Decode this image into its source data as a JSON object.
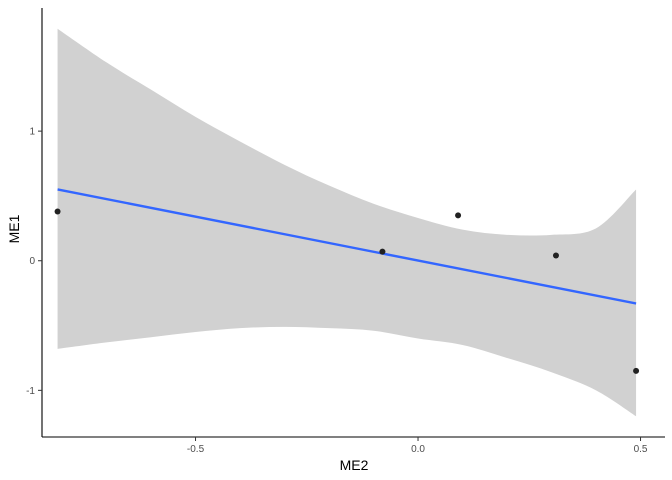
{
  "chart_data": {
    "type": "scatter",
    "xlabel": "ME2",
    "ylabel": "ME1",
    "xlim": [
      -0.845,
      0.555
    ],
    "ylim": [
      -1.36,
      1.95
    ],
    "x_ticks": [
      -0.5,
      0.0,
      0.5
    ],
    "x_tick_labels": [
      "-0.5",
      "0.0",
      "0.5"
    ],
    "y_ticks": [
      -1,
      0,
      1
    ],
    "y_tick_labels": [
      "-1",
      "0",
      "1"
    ],
    "grid": false,
    "points": [
      {
        "x": -0.81,
        "y": 0.38
      },
      {
        "x": -0.08,
        "y": 0.07
      },
      {
        "x": 0.09,
        "y": 0.35
      },
      {
        "x": 0.31,
        "y": 0.04
      },
      {
        "x": 0.49,
        "y": -0.85
      }
    ],
    "regression_line": {
      "x": [
        -0.81,
        0.49
      ],
      "y": [
        0.55,
        -0.33
      ]
    },
    "confidence_band": {
      "x": [
        -0.81,
        -0.7,
        -0.6,
        -0.5,
        -0.4,
        -0.3,
        -0.2,
        -0.1,
        0.0,
        0.1,
        0.2,
        0.3,
        0.4,
        0.49
      ],
      "upper": [
        1.79,
        1.53,
        1.32,
        1.11,
        0.92,
        0.74,
        0.58,
        0.44,
        0.33,
        0.24,
        0.2,
        0.2,
        0.25,
        0.55
      ],
      "lower": [
        -0.68,
        -0.63,
        -0.59,
        -0.55,
        -0.52,
        -0.51,
        -0.52,
        -0.54,
        -0.6,
        -0.65,
        -0.75,
        -0.86,
        -1.0,
        -1.2
      ]
    },
    "colors": {
      "line": "#3366ff",
      "band": "#d1d1d1",
      "point": "#222222",
      "axis": "#000000",
      "tick_label": "#4d4d4d"
    }
  }
}
